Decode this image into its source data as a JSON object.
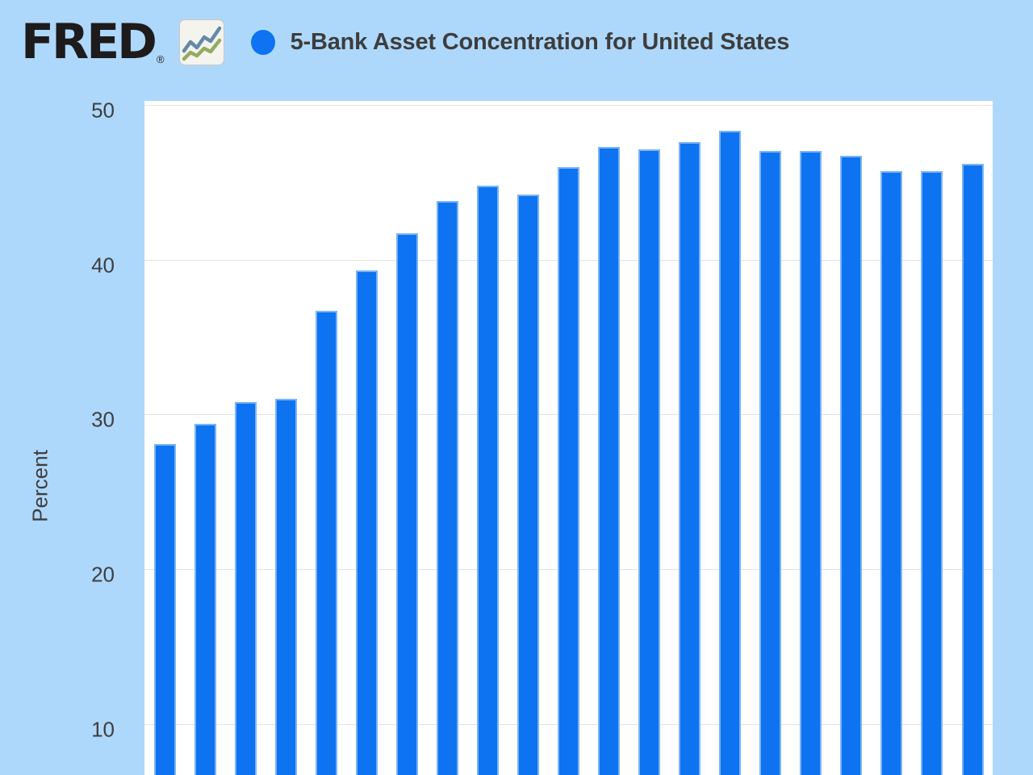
{
  "header": {
    "brand": "FRED",
    "registered_mark": "®",
    "chart_icon": "fred-line-chart-icon",
    "title": "5-Bank Asset Concentration for United States"
  },
  "colors": {
    "background": "#aed8fb",
    "bar": "#0d73f1",
    "bar_edge": "#7ab3f6",
    "plot_background": "#ffffff",
    "gridline": "#e3e3e3",
    "title_text": "#3d3d3d",
    "axis_text": "#3e3e3e",
    "brand_text": "#1d1b1b"
  },
  "chart_data": {
    "type": "bar",
    "title": "5-Bank Asset Concentration for United States",
    "ylabel": "Percent",
    "yticks": [
      10,
      20,
      30,
      40,
      50
    ],
    "ylim_visible": [
      6.7,
      50.25
    ],
    "grid": true,
    "n_bars": 21,
    "values": [
      28.1,
      29.4,
      30.8,
      31.0,
      36.7,
      39.3,
      41.7,
      43.8,
      44.8,
      44.2,
      46.0,
      47.3,
      47.1,
      47.6,
      48.3,
      47.0,
      47.0,
      46.7,
      45.7,
      45.7,
      46.2
    ],
    "x_axis_note": "x-axis tick labels are cropped below the visible area; bars are cut off at the bottom edge"
  }
}
